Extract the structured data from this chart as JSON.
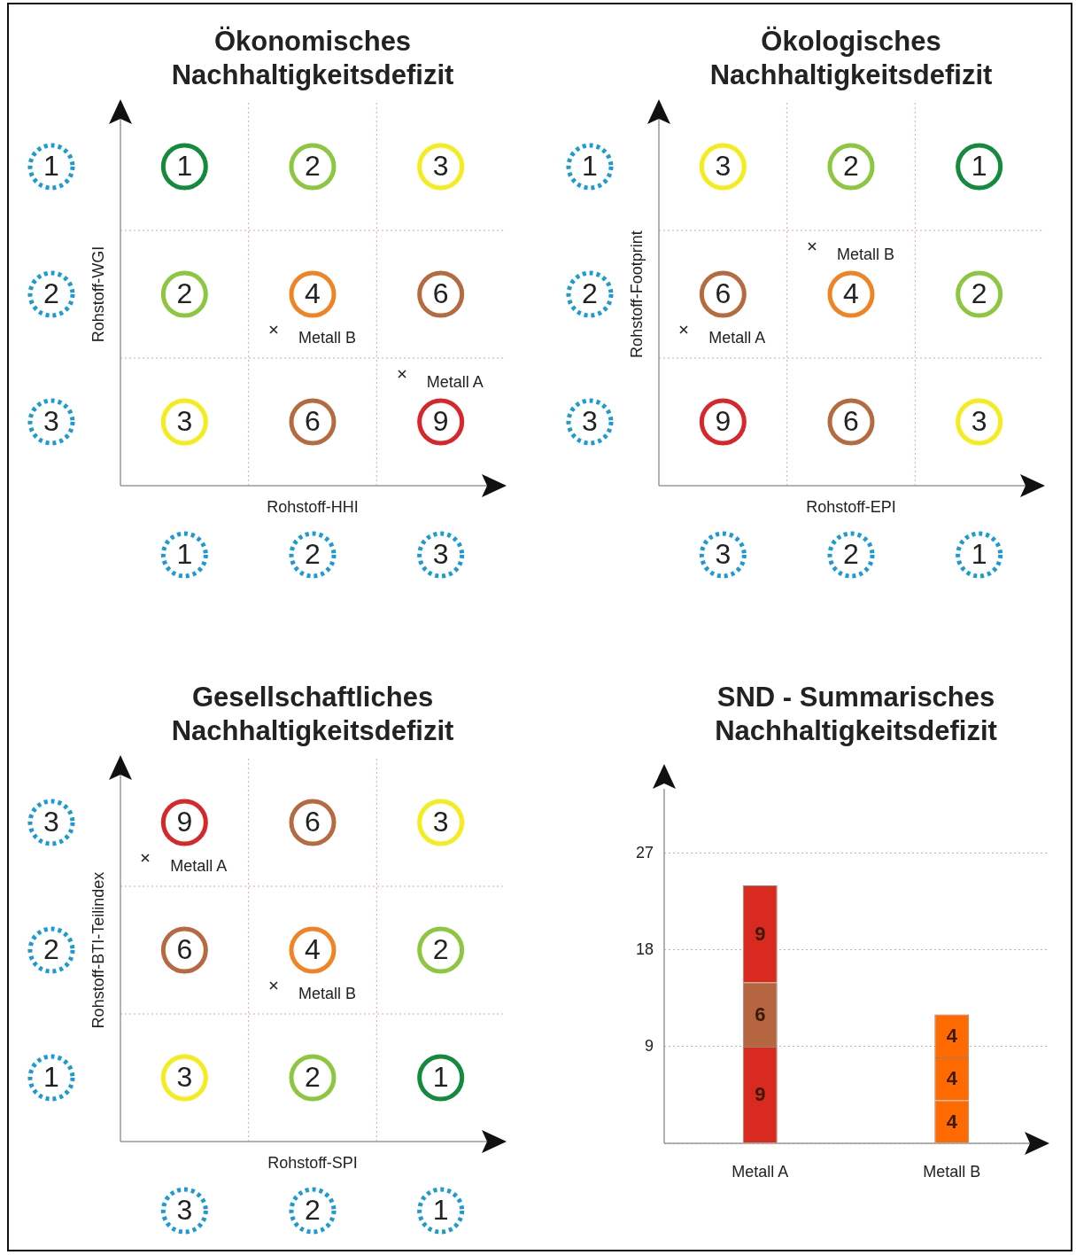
{
  "chart_data": [
    {
      "type": "heatmap",
      "title": "Ökonomisches Nachhaltigkeitsdefizit",
      "xlabel": "Rohstoff-HHI",
      "ylabel": "Rohstoff-WGI",
      "categories": [
        "1",
        "2",
        "3"
      ],
      "y_categories": [
        "1",
        "2",
        "3"
      ],
      "cells": [
        [
          1,
          2,
          3
        ],
        [
          2,
          4,
          6
        ],
        [
          3,
          6,
          9
        ]
      ],
      "colors": [
        "#148a3c",
        "#8dc63f",
        "#f4ec1b",
        "#8dc63f",
        "#f08424",
        "#b56a40",
        "#f4ec1b",
        "#b56a40",
        "#d8262a"
      ],
      "grid": true,
      "data_labels": true,
      "annotations": [
        "Metall B",
        "Metall A"
      ]
    },
    {
      "type": "heatmap",
      "title": "Ökologisches Nachhaltigkeitsdefizit",
      "xlabel": "Rohstoff-EPI",
      "ylabel": "Rohstoff-Footprint",
      "categories": [
        "3",
        "2",
        "1"
      ],
      "y_categories": [
        "1",
        "2",
        "3"
      ],
      "cells": [
        [
          3,
          2,
          1
        ],
        [
          6,
          4,
          2
        ],
        [
          9,
          6,
          3
        ]
      ],
      "colors": [
        "#f4ec1b",
        "#8dc63f",
        "#148a3c",
        "#b56a40",
        "#f08424",
        "#8dc63f",
        "#d8262a",
        "#b56a40",
        "#f4ec1b"
      ],
      "grid": true,
      "data_labels": true,
      "annotations": [
        "Metall B",
        "Metall A"
      ]
    },
    {
      "type": "heatmap",
      "title": "Gesellschaftliches Nachhaltigkeitsdefizit",
      "xlabel": "Rohstoff-SPI",
      "ylabel": "Rohstoff-BTI-Teilindex",
      "categories": [
        "3",
        "2",
        "1"
      ],
      "y_categories": [
        "3",
        "2",
        "1"
      ],
      "cells": [
        [
          9,
          6,
          3
        ],
        [
          6,
          4,
          2
        ],
        [
          3,
          2,
          1
        ]
      ],
      "colors": [
        "#d8262a",
        "#b56a40",
        "#f4ec1b",
        "#b56a40",
        "#f08424",
        "#8dc63f",
        "#f4ec1b",
        "#8dc63f",
        "#148a3c"
      ],
      "grid": true,
      "data_labels": true,
      "annotations": [
        "Metall A",
        "Metall B"
      ]
    },
    {
      "type": "bar",
      "title": "SND - Summarisches Nachhaltigkeitsdefizit",
      "categories": [
        "Metall A",
        "Metall B"
      ],
      "stacked": true,
      "series": [
        {
          "colors": [
            "#d92a20",
            "#ff6a00"
          ],
          "values": [
            9,
            4
          ]
        },
        {
          "colors": [
            "#b5653f",
            "#ff6a00"
          ],
          "values": [
            6,
            4
          ]
        },
        {
          "colors": [
            "#d92a20",
            "#ff6a00"
          ],
          "values": [
            9,
            4
          ]
        }
      ],
      "ylim": [
        0,
        33
      ],
      "yticks": [
        {
          "value": 0,
          "label": null
        },
        9,
        18,
        27
      ],
      "grid": "y",
      "data_labels": true
    }
  ]
}
